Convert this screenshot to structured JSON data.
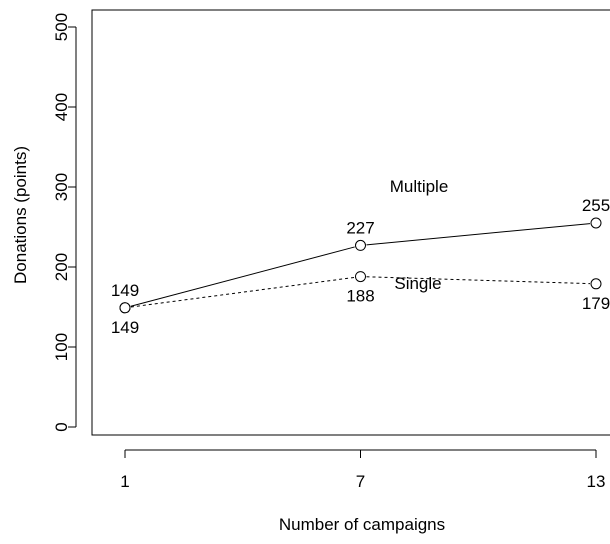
{
  "chart_data": {
    "type": "line",
    "title": "",
    "xlabel": "Number of campaigns",
    "ylabel": "Donations (points)",
    "x": [
      1,
      7,
      13
    ],
    "x_tick_labels": [
      "1",
      "7",
      "13"
    ],
    "ylim": [
      0,
      500
    ],
    "y_ticks": [
      0,
      100,
      200,
      300,
      400,
      500
    ],
    "y_tick_labels": [
      "0",
      "100",
      "200",
      "300",
      "400",
      "500"
    ],
    "grid": false,
    "series": [
      {
        "name": "Multiple",
        "line_style": "solid",
        "values": [
          149,
          227,
          255
        ],
        "data_labels": [
          "149",
          "227",
          "255"
        ],
        "label_placement": "above"
      },
      {
        "name": "Single",
        "line_style": "dashed",
        "values": [
          149,
          188,
          179
        ],
        "data_labels": [
          "149",
          "188",
          "179"
        ],
        "label_placement": "below"
      }
    ],
    "colors": {
      "line": "#000000",
      "marker_fill": "#ffffff"
    }
  }
}
